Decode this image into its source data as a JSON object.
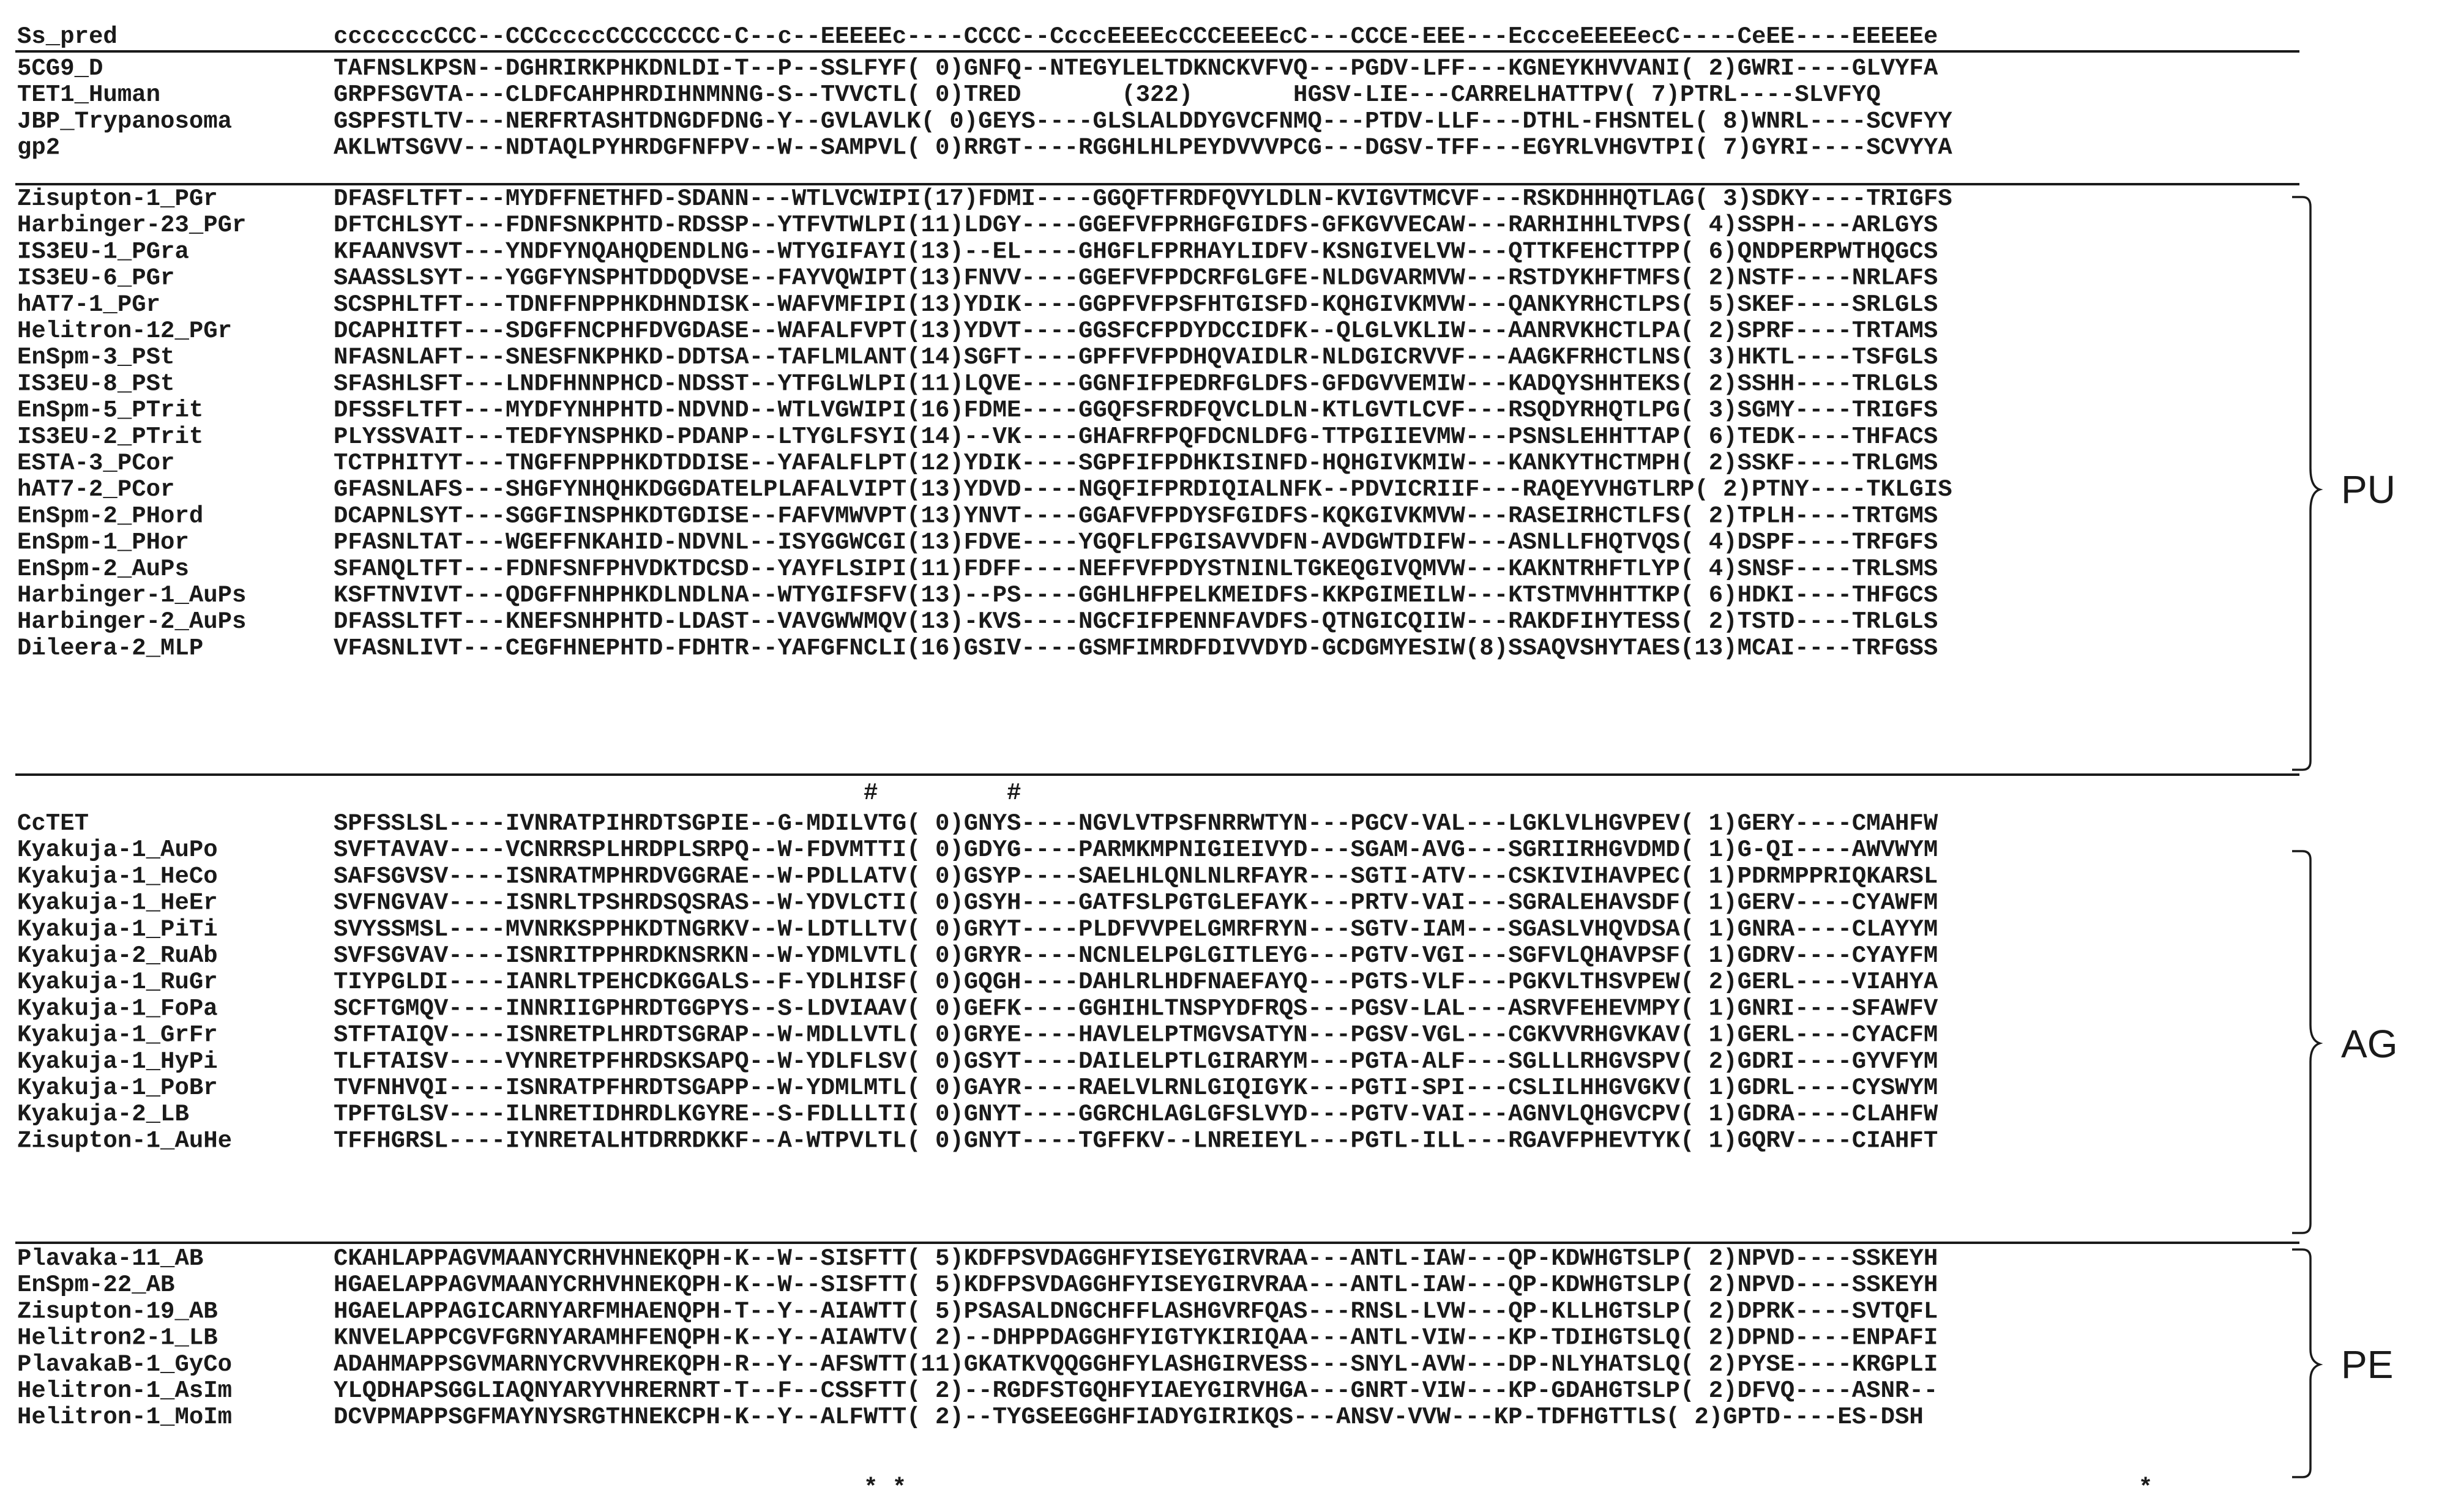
{
  "figure": {
    "header": {
      "name": "Ss_pred",
      "seq": "cccccccCCC--CCCccccCCCCCCCC-C--c--EEEEEc----CCCC--CcccEEEEcCCCEEEEcC---CCCE-EEE---EccceEEEEecC----CeEE----EEEEEe"
    },
    "groups": [
      {
        "label": "",
        "rows": [
          {
            "name": "5CG9_D",
            "seq": "TAFNSLKPSN--DGHRIRKPHKDNLDI-T--P--SSLFYF( 0)GNFQ--NTEGYLELTDKNCKVFVQ---PGDV-LFF---KGNEYKHVVANI( 2)GWRI----GLVYFA"
          },
          {
            "name": "TET1_Human",
            "seq": "GRPFSGVTA---CLDFCAHPHRDIHNMNNG-S--TVVCTL( 0)TRED       (322)       HGSV-LIE---CARRELHATTPV( 7)PTRL----SLVFYQ"
          },
          {
            "name": "JBP_Trypanosoma",
            "seq": "GSPFSTLTV---NERFRTASHTDNGDFDNG-Y--GVLAVLK( 0)GEYS----GLSLALDDYGVCFNMQ---PTDV-LLF---DTHL-FHSNTEL( 8)WNRL----SCVFYY"
          },
          {
            "name": "gp2",
            "seq": "AKLWTSGVV---NDTAQLPYHRDGFNFPV--W--SAMPVL( 0)RRGT----RGGHLHLPEYDVVVPCG---DGSV-TFF---EGYRLVHGVTPI( 7)GYRI----SCVYYA"
          }
        ]
      },
      {
        "label": "PU",
        "rows": [
          {
            "name": "Zisupton-1_PGr",
            "seq": "DFASFLTFT---MYDFFNETHFD-SDANN---WTLVCWIPI(17)FDMI----GGQFTFRDFQVYLDLN-KVIGVTMCVF---RSKDHHHQTLAG( 3)SDKY----TRIGFS"
          },
          {
            "name": "Harbinger-23_PGr",
            "seq": "DFTCHLSYT---FDNFSNKPHTD-RDSSP--YTFVTWLPI(11)LDGY----GGEFVFPRHGFGIDFS-GFKGVVECAW---RARHIHHLTVPS( 4)SSPH----ARLGYS"
          },
          {
            "name": "IS3EU-1_PGra",
            "seq": "KFAANVSVT---YNDFYNQAHQDENDLNG--WTYGIFAYI(13)--EL----GHGFLFPRHAYLIDFV-KSNGIVELVW---QTTKFEHCTTPP( 6)QNDPERPWTHQGCS"
          },
          {
            "name": "IS3EU-6_PGr",
            "seq": "SAASSLSYT---YGGFYNSPHTDDQDVSE--FAYVQWIPT(13)FNVV----GGEFVFPDCRFGLGFE-NLDGVARMVW---RSTDYKHFTMFS( 2)NSTF----NRLAFS"
          },
          {
            "name": "hAT7-1_PGr",
            "seq": "SCSPHLTFT---TDNFFNPPHKDHNDISK--WAFVMFIPI(13)YDIK----GGPFVFPSFHTGISFD-KQHGIVKMVW---QANKYRHCTLPS( 5)SKEF----SRLGLS"
          },
          {
            "name": "Helitron-12_PGr",
            "seq": "DCAPHITFT---SDGFFNCPHFDVGDASE--WAFALFVPT(13)YDVT----GGSFCFPDYDCCIDFK--QLGLVKLIW---AANRVKHCTLPA( 2)SPRF----TRTAMS"
          },
          {
            "name": "EnSpm-3_PSt",
            "seq": "NFASNLAFT---SNESFNKPHKD-DDTSA--TAFLMLANT(14)SGFT----GPFFVFPDHQVAIDLR-NLDGICRVVF---AAGKFRHCTLNS( 3)HKTL----TSFGLS"
          },
          {
            "name": "IS3EU-8_PSt",
            "seq": "SFASHLSFT---LNDFHNNPHCD-NDSST--YTFGLWLPI(11)LQVE----GGNFIFPEDRFGLDFS-GFDGVVEMIW---KADQYSHHTEKS( 2)SSHH----TRLGLS"
          },
          {
            "name": "EnSpm-5_PTrit",
            "seq": "DFSSFLTFT---MYDFYNHPHTD-NDVND--WTLVGWIPI(16)FDME----GGQFSFRDFQVCLDLN-KTLGVTLCVF---RSQDYRHQTLPG( 3)SGMY----TRIGFS"
          },
          {
            "name": "IS3EU-2_PTrit",
            "seq": "PLYSSVAIT---TEDFYNSPHKD-PDANP--LTYGLFSYI(14)--VK----GHAFRFPQFDCNLDFG-TTPGIIEVMW---PSNSLEHHTTAP( 6)TEDK----THFACS"
          },
          {
            "name": "ESTA-3_PCor",
            "seq": "TCTPHITYT---TNGFFNPPHKDTDDISE--YAFALFLPT(12)YDIK----SGPFIFPDHKISINFD-HQHGIVKMIW---KANKYTHCTMPH( 2)SSKF----TRLGMS"
          },
          {
            "name": "hAT7-2_PCor",
            "seq": "GFASNLAFS---SHGFYNHQHKDGGDATELPLAFALVIPT(13)YDVD----NGQFIFPRDIQIALNFK--PDVICRIIF---RAQEYVHGTLRP( 2)PTNY----TKLGIS"
          },
          {
            "name": "EnSpm-2_PHord",
            "seq": "DCAPNLSYT---SGGFINSPHKDTGDISE--FAFVMWVPT(13)YNVT----GGAFVFPDYSFGIDFS-KQKGIVKMVW---RASEIRHCTLFS( 2)TPLH----TRTGMS"
          },
          {
            "name": "EnSpm-1_PHor",
            "seq": "PFASNLTAT---WGEFFNKAHID-NDVNL--ISYGGWCGI(13)FDVE----YGQFLFPGISAVVDFN-AVDGWTDIFW---ASNLLFHQTVQS( 4)DSPF----TRFGFS"
          },
          {
            "name": "EnSpm-2_AuPs",
            "seq": "SFANQLTFT---FDNFSNFPHVDKTDCSD--YAYFLSIPI(11)FDFF----NEFFVFPDYSTNINLTGKEQGIVQMVW---KAKNTRHFTLYP( 4)SNSF----TRLSMS"
          },
          {
            "name": "Harbinger-1_AuPs",
            "seq": "KSFTNVIVT---QDGFFNHPHKDLNDLNA--WTYGIFSFV(13)--PS----GGHLHFPELKMEIDFS-KKPGIMEILW---KTSTMVHHTTKP( 6)HDKI----THFGCS"
          },
          {
            "name": "Harbinger-2_AuPs",
            "seq": "DFASSLTFT---KNEFSNHPHTD-LDAST--VAVGWWMQV(13)-KVS----NGCFIFPENNFAVDFS-QTNGICQIIW---RAKDFIHYTESS( 2)TSTD----TRLGLS"
          },
          {
            "name": "Dileera-2_MLP",
            "seq": "VFASNLIVT---CEGFHNEPHTD-FDHTR--YAFGFNCLI(16)GSIV----GSMFIMRDFDIVVDYD-GCDGMYESIW(8)SSAQVSHYTAES(13)MCAI----TRFGSS"
          }
        ]
      },
      {
        "label": "AG",
        "rows": [
          {
            "name": "CcTET",
            "seq": "SPFSSLSL----IVNRATPIHRDTSGPIE--G-MDILVTG( 0)GNYS----NGVLVTPSFNRRWTYN---PGCV-VAL---LGKLVLHGVPEV( 1)GERY----CMAHFW"
          },
          {
            "name": "Kyakuja-1_AuPo",
            "seq": "SVFTAVAV----VCNRRSPLHRDPLSRPQ--W-FDVMTTI( 0)GDYG----PARMKMPNIGIEIVYD---SGAM-AVG---SGRIIRHGVDMD( 1)G-QI----AWVWYM"
          },
          {
            "name": "Kyakuja-1_HeCo",
            "seq": "SAFSGVSV----ISNRATMPHRDVGGRAE--W-PDLLATV( 0)GSYP----SAELHLQNLNLRFAYR---SGTI-ATV---CSKIVIHAVPEC( 1)PDRMPPRIQKARSL"
          },
          {
            "name": "Kyakuja-1_HeEr",
            "seq": "SVFNGVAV----ISNRLTPSHRDSQSRAS--W-YDVLCTI( 0)GSYH----GATFSLPGTGLEFAYK---PRTV-VAI---SGRALEHAVSDF( 1)GERV----CYAWFM"
          },
          {
            "name": "Kyakuja-1_PiTi",
            "seq": "SVYSSMSL----MVNRKSPPHKDTNGRKV--W-LDTLLTV( 0)GRYT----PLDFVVPELGMRFRYN---SGTV-IAM---SGASLVHQVDSA( 1)GNRA----CLAYYM"
          },
          {
            "name": "Kyakuja-2_RuAb",
            "seq": "SVFSGVAV----ISNRITPPHRDKNSRKN--W-YDMLVTL( 0)GRYR----NCNLELPGLGITLEYG---PGTV-VGI---SGFVLQHAVPSF( 1)GDRV----CYAYFM"
          },
          {
            "name": "Kyakuja-1_RuGr",
            "seq": "TIYPGLDI----IANRLTPEHCDKGGALS--F-YDLHISF( 0)GQGH----DAHLRLHDFNAEFAYQ---PGTS-VLF---PGKVLTHSVPEW( 2)GERL----VIAHYA"
          },
          {
            "name": "Kyakuja-1_FoPa",
            "seq": "SCFTGMQV----INNRIIGPHRDTGGPYS--S-LDVIAAV( 0)GEFK----GGHIHLTNSPYDFRQS---PGSV-LAL---ASRVFEHEVMPY( 1)GNRI----SFAWFV"
          },
          {
            "name": "Kyakuja-1_GrFr",
            "seq": "STFTAIQV----ISNRETPLHRDTSGRAP--W-MDLLVTL( 0)GRYE----HAVLELPTMGVSATYN---PGSV-VGL---CGKVVRHGVKAV( 1)GERL----CYACFM"
          },
          {
            "name": "Kyakuja-1_HyPi",
            "seq": "TLFTAISV----VYNRETPFHRDSKSAPQ--W-YDLFLSV( 0)GSYT----DAILELPTLGIRARYM---PGTA-ALF---SGLLLRHGVSPV( 2)GDRI----GYVFYM"
          },
          {
            "name": "Kyakuja-1_PoBr",
            "seq": "TVFNHVQI----ISNRATPFHRDTSGAPP--W-YDMLMTL( 0)GAYR----RAELVLRNLGIQIGYK---PGTI-SPI---CSLILHHGVGKV( 1)GDRL----CYSWYM"
          },
          {
            "name": "Kyakuja-2_LB",
            "seq": "TPFTGLSV----ILNRETIDHRDLKGYRE--S-FDLLLTI( 0)GNYT----GGRCHLAGLGFSLVYD---PGTV-VAI---AGNVLQHGVCPV( 1)GDRA----CLAHFW"
          },
          {
            "name": "Zisupton-1_AuHe",
            "seq": "TFFHGRSL----IYNRETALHTDRRDKKF--A-WTPVLTL( 0)GNYT----TGFFKV--LNREIEYL---PGTL-ILL---RGAVFPHEVTYK( 1)GQRV----CIAHFT"
          }
        ]
      },
      {
        "label": "PE",
        "rows": [
          {
            "name": "Plavaka-11_AB",
            "seq": "CKAHLAPPAGVMAANYCRHVHNEKQPH-K--W--SISFTT( 5)KDFPSVDAGGHFYISEYGIRVRAA---ANTL-IAW---QP-KDWHGTSLP( 2)NPVD----SSKEYH"
          },
          {
            "name": "EnSpm-22_AB",
            "seq": "HGAELAPPAGVMAANYCRHVHNEKQPH-K--W--SISFTT( 5)KDFPSVDAGGHFYISEYGIRVRAA---ANTL-IAW---QP-KDWHGTSLP( 2)NPVD----SSKEYH"
          },
          {
            "name": "Zisupton-19_AB",
            "seq": "HGAELAPPAGICARNYARFMHAENQPH-T--Y--AIAWTT( 5)PSASALDNGCHFFLASHGVRFQAS---RNSL-LVW---QP-KLLHGTSLP( 2)DPRK----SVTQFL"
          },
          {
            "name": "Helitron2-1_LB",
            "seq": "KNVELAPPCGVFGRNYARAMHFENQPH-K--Y--AIAWTV( 2)--DHPPDAGGHFYIGTYKIRIQAA---ANTL-VIW---KP-TDIHGTSLQ( 2)DPND----ENPAFI"
          },
          {
            "name": "PlavakaB-1_GyCo",
            "seq": "ADAHMAPPSGVMARNYCRVVHREKQPH-R--Y--AFSWTT(11)GKATKVQQGGHFYLASHGIRVESS---SNYL-AVW---DP-NLYHATSLQ( 2)PYSE----KRGPLI"
          },
          {
            "name": "Helitron-1_AsIm",
            "seq": "YLQDHAPSGGLIAQNYARYVHRERNRT-T--F--CSSFTT( 2)--RGDFSTGQHFYIAEYGIRVHGA---GNRT-VIW---KP-GDAHGTSLP( 2)DFVQ----ASNR--"
          },
          {
            "name": "Helitron-1_MoIm",
            "seq": "DCVPMAPPSGFMAYNYSRGTHNEKCPH-K--Y--ALFWTT( 2)--TYGSEEGGHFIADYGIRIKQS---ANSV-VVW---KP-TDFHGTTLS( 2)GPTD----ES-DSH"
          }
        ]
      }
    ],
    "markers": {
      "hash_row": "                                     #         #",
      "star_row": "                                     * *                                                                                      *"
    },
    "colors": {
      "catalytic": "#e8242a",
      "pu": "#f6b300",
      "ag": "#21a84a",
      "pe": "#19a2dc",
      "text": "#1a1a1a"
    }
  }
}
